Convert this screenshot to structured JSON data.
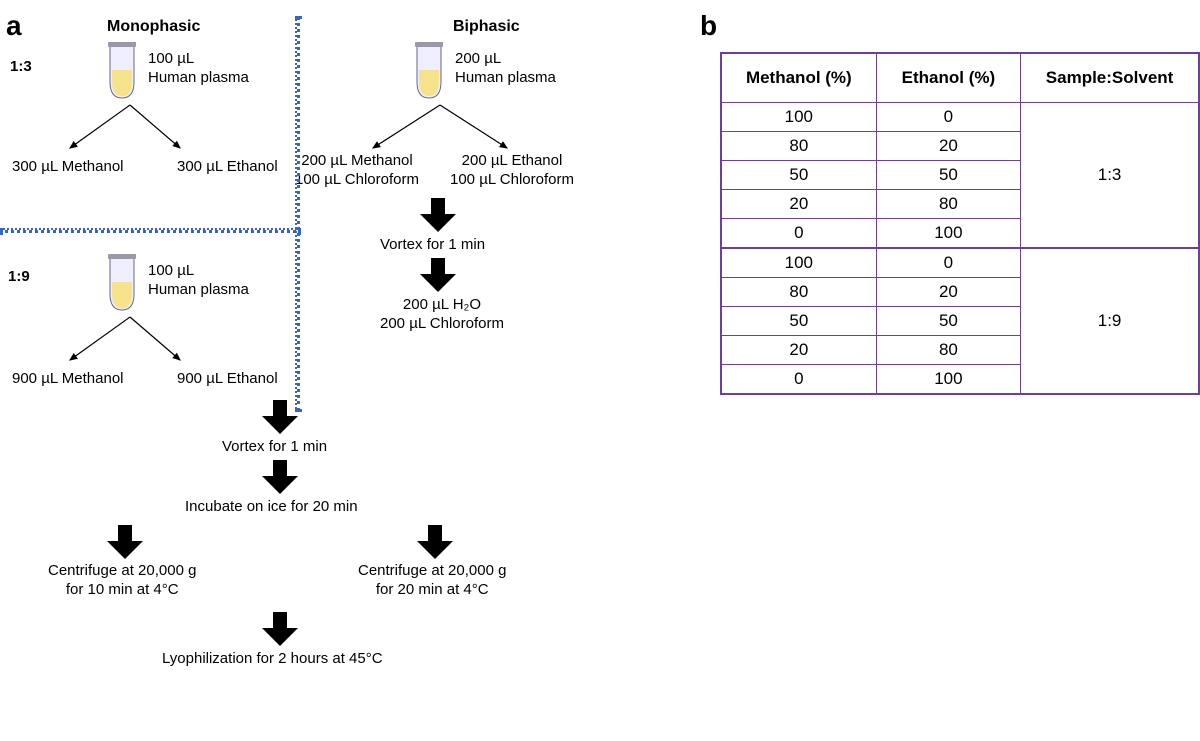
{
  "panelA": {
    "label": "a",
    "monophasic": "Monophasic",
    "biphasic": "Biphasic",
    "ratio13": "1:3",
    "ratio19": "1:9",
    "plasma100": "100 µL\nHuman plasma",
    "plasma200": "200 µL\nHuman plasma",
    "meth300": "300 µL Methanol",
    "eth300": "300 µL Ethanol",
    "meth900": "900 µL Methanol",
    "eth900": "900 µL Ethanol",
    "biMeth": "200 µL Methanol\n100 µL Chloroform",
    "biEth": "200 µL Ethanol\n100 µL Chloroform",
    "vortex1": "Vortex for 1 min",
    "h2oChl": "200 µL H₂O\n200 µL Chloroform",
    "vortex2": "Vortex for 1 min",
    "incubate": "Incubate on ice for 20 min",
    "centrifugeA": "Centrifuge at 20,000 g\nfor 10 min at 4°C",
    "centrifugeB": "Centrifuge at 20,000 g\nfor 20 min at 4°C",
    "lyoph": "Lyophilization for 2 hours at 45°C"
  },
  "panelB": {
    "label": "b",
    "headers": [
      "Methanol (%)",
      "Ethanol (%)",
      "Sample:Solvent"
    ],
    "group1": {
      "rows": [
        [
          "100",
          "0"
        ],
        [
          "80",
          "20"
        ],
        [
          "50",
          "50"
        ],
        [
          "20",
          "80"
        ],
        [
          "0",
          "100"
        ]
      ],
      "ratio": "1:3"
    },
    "group2": {
      "rows": [
        [
          "100",
          "0"
        ],
        [
          "80",
          "20"
        ],
        [
          "50",
          "50"
        ],
        [
          "20",
          "80"
        ],
        [
          "0",
          "100"
        ]
      ],
      "ratio": "1:9"
    },
    "colors": {
      "border": "#6a3fa0"
    }
  }
}
